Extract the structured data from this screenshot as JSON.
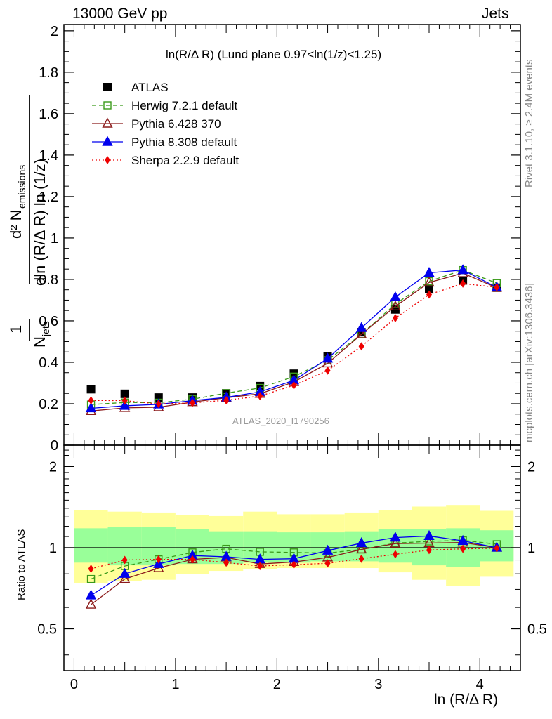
{
  "header": {
    "left": "13000 GeV pp",
    "right": "Jets"
  },
  "side_labels": {
    "rivet": "Rivet 3.1.10, ≥ 2.4M events",
    "mcplots": "mcplots.cern.ch [arXiv:1306.3436]"
  },
  "colors": {
    "atlas": "#000000",
    "herwig": "#3a9a1a",
    "pythia6": "#8b1a1a",
    "pythia8": "#0000ee",
    "sherpa": "#ee0000",
    "band_yellow": "#ffff99",
    "band_green": "#99ff99"
  },
  "chart_data": [
    {
      "type": "scatter",
      "title": "ln(R/Δ R) (Lund plane 0.97<ln(1/z)<1.25)",
      "watermark": "ATLAS_2020_I1790256",
      "ylabel": "1/N_jets dln (R/Δ R) ln (1/z) d² N_emissions",
      "xlim": [
        -0.1,
        4.4
      ],
      "ylim": [
        0,
        2.03
      ],
      "yticks": [
        "0",
        "0.2",
        "0.4",
        "0.6",
        "0.8",
        "1",
        "1.2",
        "1.4",
        "1.6",
        "1.8",
        "2"
      ],
      "x": [
        0.167,
        0.5,
        0.833,
        1.167,
        1.5,
        1.833,
        2.167,
        2.5,
        2.833,
        3.167,
        3.5,
        3.833,
        4.167
      ],
      "legend_position": "top-left",
      "series": [
        {
          "name": "ATLAS",
          "marker": "square-filled",
          "color_key": "atlas",
          "values": [
            0.27,
            0.248,
            0.23,
            0.23,
            0.25,
            0.285,
            0.345,
            0.43,
            0.545,
            0.655,
            0.755,
            0.795,
            0.76
          ]
        },
        {
          "name": "Herwig 7.2.1 default",
          "marker": "square-open",
          "line": "dashed",
          "color_key": "herwig",
          "values": [
            0.196,
            0.206,
            0.205,
            0.222,
            0.251,
            0.276,
            0.331,
            0.41,
            0.536,
            0.681,
            0.791,
            0.845,
            0.782
          ]
        },
        {
          "name": "Pythia 6.428 370",
          "marker": "triangle-open",
          "line": "solid",
          "color_key": "pythia6",
          "values": [
            0.165,
            0.18,
            0.183,
            0.208,
            0.229,
            0.248,
            0.305,
            0.395,
            0.535,
            0.67,
            0.785,
            0.83,
            0.76
          ]
        },
        {
          "name": "Pythia 8.308 default",
          "marker": "triangle-filled",
          "line": "solid",
          "color_key": "pythia8",
          "values": [
            0.178,
            0.19,
            0.197,
            0.215,
            0.231,
            0.257,
            0.313,
            0.418,
            0.566,
            0.714,
            0.832,
            0.845,
            0.762
          ]
        },
        {
          "name": "Sherpa 2.2.9 default",
          "marker": "diamond-filled",
          "line": "dotted",
          "color_key": "sherpa",
          "values": [
            0.216,
            0.215,
            0.199,
            0.204,
            0.217,
            0.237,
            0.289,
            0.36,
            0.477,
            0.613,
            0.727,
            0.78,
            0.762
          ]
        }
      ]
    },
    {
      "type": "scatter",
      "ylabel": "Ratio to ATLAS",
      "xlabel": "ln (R/Δ R)",
      "xlim": [
        -0.1,
        4.4
      ],
      "ylim": [
        0.35,
        2.4
      ],
      "y_scale": "log",
      "yticks": [
        "0.5",
        "1",
        "2"
      ],
      "xticks": [
        "0",
        "1",
        "2",
        "3",
        "4"
      ],
      "x": [
        0.167,
        0.5,
        0.833,
        1.167,
        1.5,
        1.833,
        2.167,
        2.5,
        2.833,
        3.167,
        3.5,
        3.833,
        4.167
      ],
      "band_edges": [
        0.0,
        0.333,
        0.667,
        1.0,
        1.333,
        1.667,
        2.0,
        2.333,
        2.667,
        3.0,
        3.333,
        3.667,
        4.0,
        4.333
      ],
      "band_green": {
        "lo": [
          0.88,
          0.86,
          0.86,
          0.87,
          0.87,
          0.88,
          0.88,
          0.89,
          0.89,
          0.88,
          0.86,
          0.85,
          0.89
        ],
        "hi": [
          1.18,
          1.19,
          1.19,
          1.17,
          1.15,
          1.15,
          1.14,
          1.14,
          1.15,
          1.17,
          1.17,
          1.18,
          1.16
        ]
      },
      "band_yellow": {
        "lo": [
          0.74,
          0.75,
          0.76,
          0.8,
          0.82,
          0.83,
          0.84,
          0.84,
          0.84,
          0.81,
          0.76,
          0.72,
          0.78
        ],
        "hi": [
          1.38,
          1.36,
          1.35,
          1.32,
          1.31,
          1.36,
          1.33,
          1.33,
          1.35,
          1.38,
          1.42,
          1.44,
          1.37
        ]
      },
      "series": [
        {
          "name": "Herwig 7.2.1 default",
          "color_key": "herwig",
          "marker": "square-open",
          "line": "dashed",
          "values": [
            0.765,
            0.855,
            0.905,
            0.96,
            0.99,
            0.965,
            0.96,
            0.955,
            0.985,
            1.04,
            1.055,
            1.065,
            1.03
          ]
        },
        {
          "name": "Pythia 6.428 370",
          "color_key": "pythia6",
          "marker": "triangle-open",
          "line": "solid",
          "values": [
            0.615,
            0.765,
            0.84,
            0.905,
            0.92,
            0.87,
            0.885,
            0.92,
            0.985,
            1.035,
            1.04,
            1.045,
            1.0
          ]
        },
        {
          "name": "Pythia 8.308 default",
          "color_key": "pythia8",
          "marker": "triangle-filled",
          "line": "solid",
          "values": [
            0.665,
            0.8,
            0.87,
            0.935,
            0.925,
            0.905,
            0.91,
            0.975,
            1.04,
            1.09,
            1.105,
            1.06,
            1.0
          ]
        },
        {
          "name": "Sherpa 2.2.9 default",
          "color_key": "sherpa",
          "marker": "diamond-filled",
          "line": "dotted",
          "values": [
            0.835,
            0.9,
            0.905,
            0.905,
            0.88,
            0.855,
            0.865,
            0.875,
            0.91,
            0.945,
            0.98,
            0.99,
            0.995
          ]
        }
      ]
    }
  ]
}
